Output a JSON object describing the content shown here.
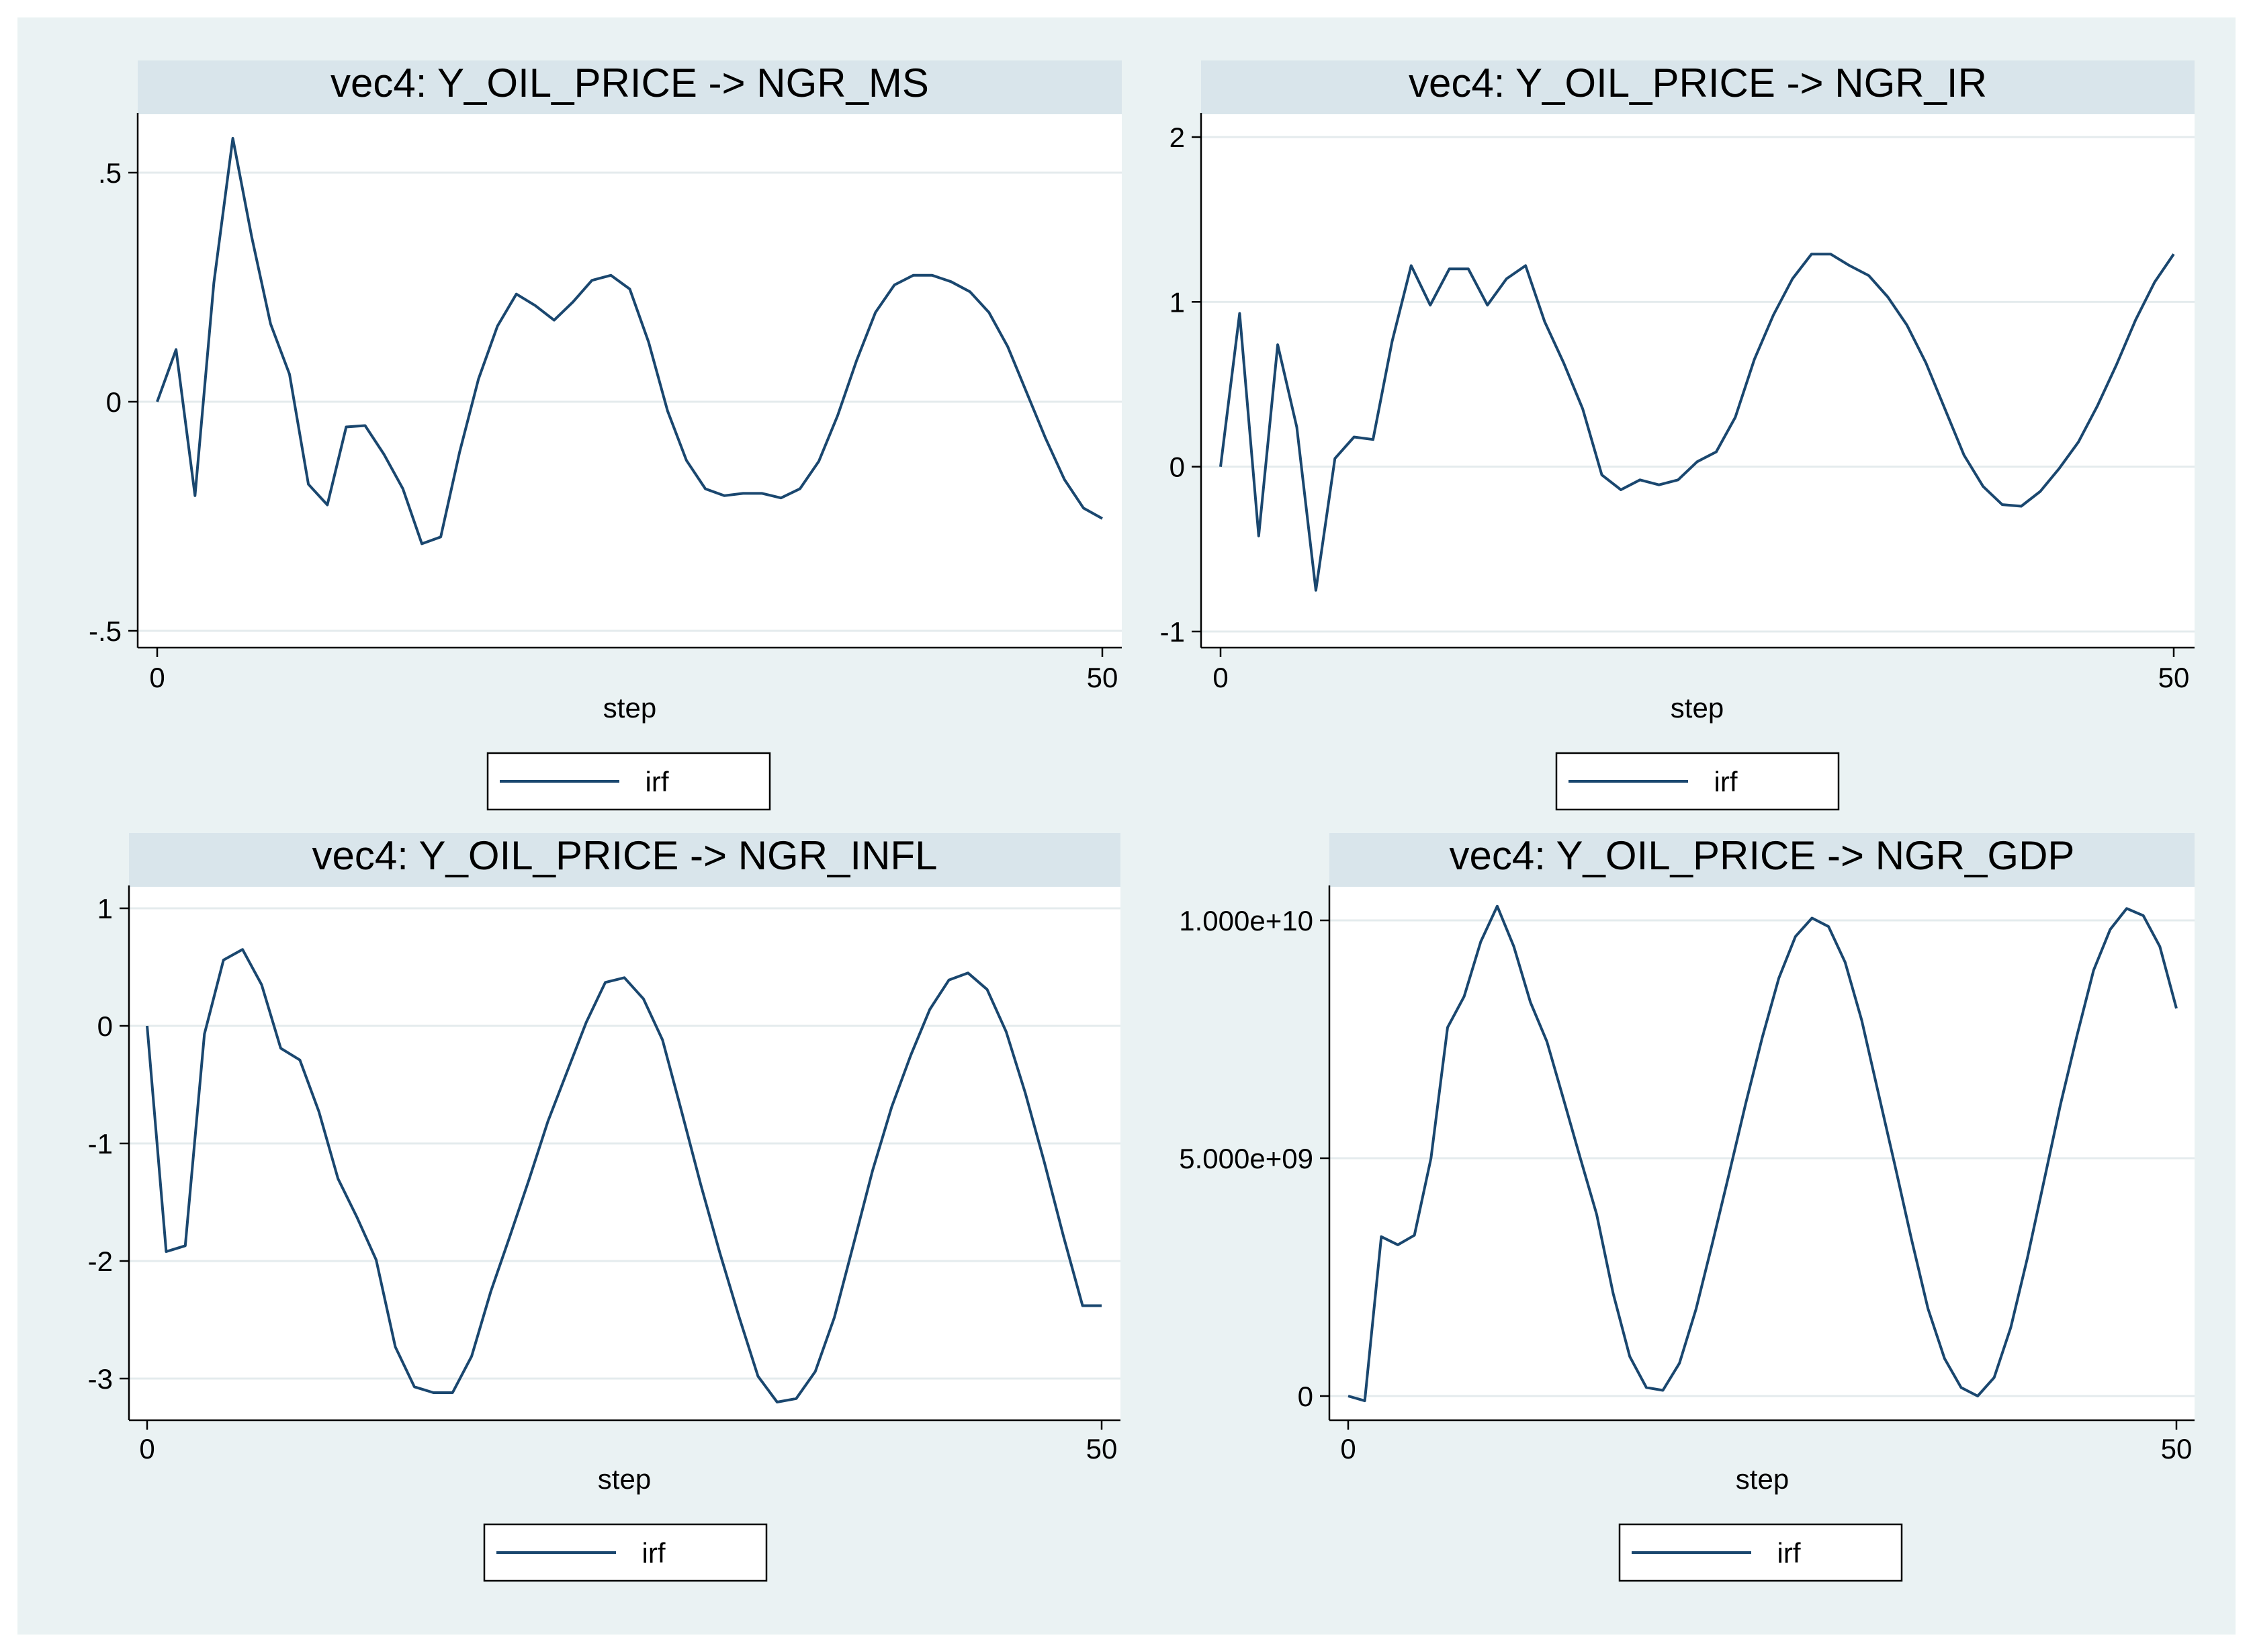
{
  "chart_data": [
    {
      "type": "line",
      "title": "vec4: Y_OIL_PRICE -> NGR_MS",
      "xlabel": "step",
      "ylabel": "",
      "xlim": [
        0,
        50
      ],
      "ylim": [
        -0.5,
        0.5
      ],
      "xticks": [
        0,
        50
      ],
      "xtick_labels": [
        "0",
        "50"
      ],
      "yticks": [
        -0.5,
        0,
        0.5
      ],
      "ytick_labels": [
        "-.5",
        "0",
        ".5"
      ],
      "grid": true,
      "legend": {
        "position": "bottom",
        "entries": [
          "irf"
        ]
      },
      "series": [
        {
          "name": "irf",
          "x": [
            0,
            1,
            2,
            3,
            4,
            5,
            6,
            7,
            8,
            9,
            10,
            11,
            12,
            13,
            14,
            15,
            16,
            17,
            18,
            19,
            20,
            21,
            22,
            23,
            24,
            25,
            26,
            27,
            28,
            29,
            30,
            31,
            32,
            33,
            34,
            35,
            36,
            37,
            38,
            39,
            40,
            41,
            42,
            43,
            44,
            45,
            46,
            47,
            48,
            49,
            50
          ],
          "values": [
            0,
            0.114,
            -0.205,
            0.26,
            0.575,
            0.36,
            0.17,
            0.06,
            -0.18,
            -0.225,
            -0.055,
            -0.052,
            -0.115,
            -0.19,
            -0.31,
            -0.295,
            -0.11,
            0.05,
            0.165,
            0.235,
            0.21,
            0.178,
            0.218,
            0.265,
            0.276,
            0.246,
            0.13,
            -0.02,
            -0.128,
            -0.19,
            -0.205,
            -0.2,
            -0.2,
            -0.21,
            -0.19,
            -0.13,
            -0.03,
            0.09,
            0.195,
            0.255,
            0.276,
            0.276,
            0.262,
            0.24,
            0.195,
            0.12,
            0.02,
            -0.08,
            -0.17,
            -0.232,
            -0.255
          ]
        }
      ]
    },
    {
      "type": "line",
      "title": "vec4: Y_OIL_PRICE -> NGR_IR",
      "xlabel": "step",
      "ylabel": "",
      "xlim": [
        0,
        50
      ],
      "ylim": [
        -1,
        2
      ],
      "xticks": [
        0,
        50
      ],
      "xtick_labels": [
        "0",
        "50"
      ],
      "yticks": [
        -1,
        0,
        1,
        2
      ],
      "ytick_labels": [
        "-1",
        "0",
        "1",
        "2"
      ],
      "grid": true,
      "legend": {
        "position": "bottom",
        "entries": [
          "irf"
        ]
      },
      "series": [
        {
          "name": "irf",
          "x": [
            0,
            1,
            2,
            3,
            4,
            5,
            6,
            7,
            8,
            9,
            10,
            11,
            12,
            13,
            14,
            15,
            16,
            17,
            18,
            19,
            20,
            21,
            22,
            23,
            24,
            25,
            26,
            27,
            28,
            29,
            30,
            31,
            32,
            33,
            34,
            35,
            36,
            37,
            38,
            39,
            40,
            41,
            42,
            43,
            44,
            45,
            46,
            47,
            48,
            49,
            50
          ],
          "values": [
            0,
            0.93,
            -0.42,
            0.74,
            0.24,
            -0.75,
            0.05,
            0.18,
            0.165,
            0.76,
            1.22,
            0.98,
            1.2,
            1.2,
            0.98,
            1.14,
            1.22,
            0.88,
            0.63,
            0.35,
            -0.05,
            -0.14,
            -0.08,
            -0.11,
            -0.08,
            0.03,
            0.09,
            0.3,
            0.65,
            0.92,
            1.14,
            1.29,
            1.29,
            1.22,
            1.16,
            1.03,
            0.86,
            0.63,
            0.35,
            0.07,
            -0.12,
            -0.23,
            -0.24,
            -0.15,
            -0.01,
            0.15,
            0.37,
            0.62,
            0.89,
            1.12,
            1.29
          ]
        }
      ]
    },
    {
      "type": "line",
      "title": "vec4: Y_OIL_PRICE -> NGR_INFL",
      "xlabel": "step",
      "ylabel": "",
      "xlim": [
        0,
        50
      ],
      "ylim": [
        -3,
        1
      ],
      "xticks": [
        0,
        50
      ],
      "xtick_labels": [
        "0",
        "50"
      ],
      "yticks": [
        -3,
        -2,
        -1,
        0,
        1
      ],
      "ytick_labels": [
        "-3",
        "-2",
        "-1",
        "0",
        "1"
      ],
      "grid": true,
      "legend": {
        "position": "bottom",
        "entries": [
          "irf"
        ]
      },
      "series": [
        {
          "name": "irf",
          "x": [
            0,
            1,
            2,
            3,
            4,
            5,
            6,
            7,
            8,
            9,
            10,
            11,
            12,
            13,
            14,
            15,
            16,
            17,
            18,
            19,
            20,
            21,
            22,
            23,
            24,
            25,
            26,
            27,
            28,
            29,
            30,
            31,
            32,
            33,
            34,
            35,
            36,
            37,
            38,
            39,
            40,
            41,
            42,
            43,
            44,
            45,
            46,
            47,
            48,
            49,
            50
          ],
          "values": [
            0,
            -1.92,
            -1.87,
            -0.07,
            0.56,
            0.65,
            0.35,
            -0.19,
            -0.29,
            -0.73,
            -1.3,
            -1.63,
            -1.99,
            -2.73,
            -3.07,
            -3.12,
            -3.12,
            -2.81,
            -2.26,
            -1.79,
            -1.31,
            -0.81,
            -0.39,
            0.03,
            0.37,
            0.41,
            0.23,
            -0.12,
            -0.73,
            -1.35,
            -1.93,
            -2.47,
            -2.98,
            -3.2,
            -3.17,
            -2.94,
            -2.48,
            -1.86,
            -1.23,
            -0.69,
            -0.25,
            0.14,
            0.39,
            0.45,
            0.31,
            -0.05,
            -0.57,
            -1.16,
            -1.79,
            -2.38,
            -2.38
          ]
        }
      ]
    },
    {
      "type": "line",
      "title": "vec4: Y_OIL_PRICE -> NGR_GDP",
      "xlabel": "step",
      "ylabel": "",
      "xlim": [
        0,
        50
      ],
      "ylim": [
        0,
        10000000000
      ],
      "xticks": [
        0,
        50
      ],
      "xtick_labels": [
        "0",
        "50"
      ],
      "yticks": [
        0,
        5000000000,
        10000000000
      ],
      "ytick_labels": [
        "0",
        "5.000e+09",
        "1.000e+10"
      ],
      "grid": true,
      "legend": {
        "position": "bottom",
        "entries": [
          "irf"
        ]
      },
      "series": [
        {
          "name": "irf",
          "x": [
            0,
            1,
            2,
            3,
            4,
            5,
            6,
            7,
            8,
            9,
            10,
            11,
            12,
            13,
            14,
            15,
            16,
            17,
            18,
            19,
            20,
            21,
            22,
            23,
            24,
            25,
            26,
            27,
            28,
            29,
            30,
            31,
            32,
            33,
            34,
            35,
            36,
            37,
            38,
            39,
            40,
            41,
            42,
            43,
            44,
            45,
            46,
            47,
            48,
            49,
            50
          ],
          "values": [
            0,
            -100000000,
            3350000000,
            3180000000,
            3380000000,
            5000000000,
            7750000000,
            8400000000,
            9550000000,
            10300000000,
            9450000000,
            8280000000,
            7450000000,
            6240000000,
            5020000000,
            3820000000,
            2150000000,
            830000000,
            180000000,
            120000000,
            690000000,
            1830000000,
            3230000000,
            4680000000,
            6150000000,
            7540000000,
            8790000000,
            9660000000,
            10050000000,
            9870000000,
            9120000000,
            7900000000,
            6380000000,
            4860000000,
            3310000000,
            1840000000,
            790000000,
            180000000,
            0,
            390000000,
            1440000000,
            2900000000,
            4510000000,
            6130000000,
            7580000000,
            8950000000,
            9810000000,
            10250000000,
            10100000000,
            9450000000,
            8150000000
          ]
        }
      ]
    }
  ]
}
